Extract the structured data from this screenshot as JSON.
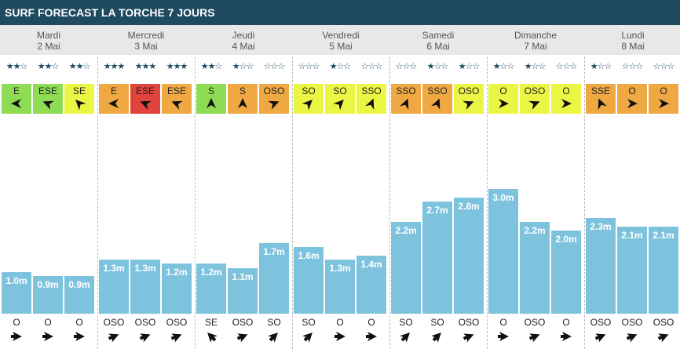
{
  "title": "SURF FORECAST LA TORCHE 7 JOURS",
  "colors": {
    "header_bg": "#1f4a5f",
    "bar": "#7ec3de",
    "wind_lime": "#8ddc53",
    "wind_yellow": "#ebf544",
    "wind_orange": "#f0a843",
    "wind_red": "#e0443c"
  },
  "days": [
    {
      "name": "Mardi",
      "date": "2 Mai",
      "slots": [
        {
          "stars": 2,
          "wind_dir": "E",
          "wind_color": "lime",
          "wave": "1.0m",
          "wave_value": 1.0,
          "swell_dir": "O"
        },
        {
          "stars": 2,
          "wind_dir": "ESE",
          "wind_color": "lime",
          "wave": "0.9m",
          "wave_value": 0.9,
          "swell_dir": "O"
        },
        {
          "stars": 2,
          "wind_dir": "SE",
          "wind_color": "yellow",
          "wave": "0.9m",
          "wave_value": 0.9,
          "swell_dir": "O"
        }
      ]
    },
    {
      "name": "Mercredi",
      "date": "3 Mai",
      "slots": [
        {
          "stars": 3,
          "wind_dir": "E",
          "wind_color": "orange",
          "wave": "1.3m",
          "wave_value": 1.3,
          "swell_dir": "OSO"
        },
        {
          "stars": 3,
          "wind_dir": "ESE",
          "wind_color": "red",
          "wave": "1.3m",
          "wave_value": 1.3,
          "swell_dir": "OSO"
        },
        {
          "stars": 3,
          "wind_dir": "ESE",
          "wind_color": "orange",
          "wave": "1.2m",
          "wave_value": 1.2,
          "swell_dir": "OSO"
        }
      ]
    },
    {
      "name": "Jeudi",
      "date": "4 Mai",
      "slots": [
        {
          "stars": 2,
          "wind_dir": "S",
          "wind_color": "lime",
          "wave": "1.2m",
          "wave_value": 1.2,
          "swell_dir": "SE"
        },
        {
          "stars": 1,
          "wind_dir": "S",
          "wind_color": "orange",
          "wave": "1.1m",
          "wave_value": 1.1,
          "swell_dir": "OSO"
        },
        {
          "stars": 0,
          "wind_dir": "OSO",
          "wind_color": "orange",
          "wave": "1.7m",
          "wave_value": 1.7,
          "swell_dir": "SO"
        }
      ]
    },
    {
      "name": "Vendredi",
      "date": "5 Mai",
      "slots": [
        {
          "stars": 0,
          "wind_dir": "SO",
          "wind_color": "yellow",
          "wave": "1.6m",
          "wave_value": 1.6,
          "swell_dir": "SO"
        },
        {
          "stars": 1,
          "wind_dir": "SO",
          "wind_color": "yellow",
          "wave": "1.3m",
          "wave_value": 1.3,
          "swell_dir": "O"
        },
        {
          "stars": 0,
          "wind_dir": "SSO",
          "wind_color": "yellow",
          "wave": "1.4m",
          "wave_value": 1.4,
          "swell_dir": "O"
        }
      ]
    },
    {
      "name": "Samedi",
      "date": "6 Mai",
      "slots": [
        {
          "stars": 0,
          "wind_dir": "SSO",
          "wind_color": "orange",
          "wave": "2.2m",
          "wave_value": 2.2,
          "swell_dir": "SO"
        },
        {
          "stars": 1,
          "wind_dir": "SSO",
          "wind_color": "orange",
          "wave": "2.7m",
          "wave_value": 2.7,
          "swell_dir": "SO"
        },
        {
          "stars": 1,
          "wind_dir": "OSO",
          "wind_color": "yellow",
          "wave": "2.8m",
          "wave_value": 2.8,
          "swell_dir": "OSO"
        }
      ]
    },
    {
      "name": "Dimanche",
      "date": "7 Mai",
      "slots": [
        {
          "stars": 1,
          "wind_dir": "O",
          "wind_color": "yellow",
          "wave": "3.0m",
          "wave_value": 3.0,
          "swell_dir": "O"
        },
        {
          "stars": 1,
          "wind_dir": "OSO",
          "wind_color": "yellow",
          "wave": "2.2m",
          "wave_value": 2.2,
          "swell_dir": "OSO"
        },
        {
          "stars": 0,
          "wind_dir": "O",
          "wind_color": "yellow",
          "wave": "2.0m",
          "wave_value": 2.0,
          "swell_dir": "O"
        }
      ]
    },
    {
      "name": "Lundi",
      "date": "8 Mai",
      "slots": [
        {
          "stars": 1,
          "wind_dir": "SSE",
          "wind_color": "orange",
          "wave": "2.3m",
          "wave_value": 2.3,
          "swell_dir": "OSO"
        },
        {
          "stars": 0,
          "wind_dir": "O",
          "wind_color": "orange",
          "wave": "2.1m",
          "wave_value": 2.1,
          "swell_dir": "OSO"
        },
        {
          "stars": 0,
          "wind_dir": "O",
          "wind_color": "orange",
          "wave": "2.1m",
          "wave_value": 2.1,
          "swell_dir": "OSO"
        }
      ]
    }
  ]
}
